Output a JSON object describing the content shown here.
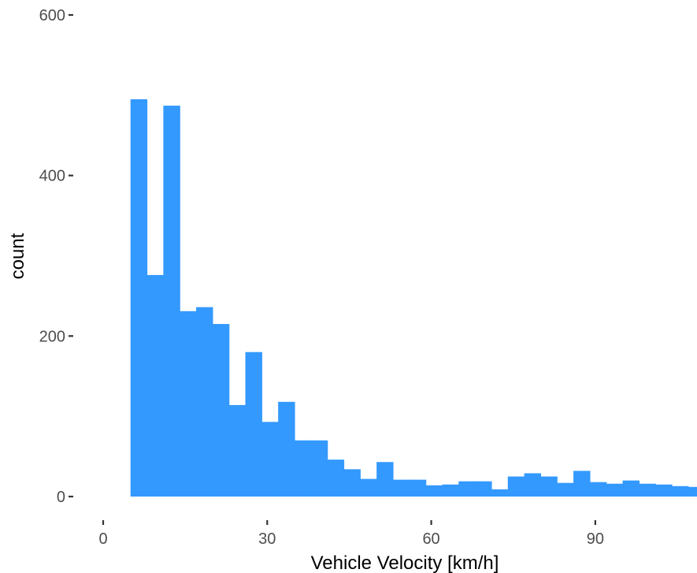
{
  "chart_data": {
    "type": "bar",
    "subtype": "histogram",
    "title": "",
    "xlabel": "Vehicle Velocity [km/h]",
    "ylabel": "count",
    "xlim": [
      0,
      108.6
    ],
    "ylim": [
      0,
      600
    ],
    "x_ticks": [
      0,
      30,
      60,
      90
    ],
    "y_ticks": [
      0,
      200,
      400,
      600
    ],
    "grid": false,
    "bar_color": "#3399ff",
    "bin_width": 3,
    "bins": [
      {
        "x0": 5,
        "count": 495
      },
      {
        "x0": 8,
        "count": 276
      },
      {
        "x0": 11,
        "count": 487
      },
      {
        "x0": 14,
        "count": 231
      },
      {
        "x0": 17,
        "count": 236
      },
      {
        "x0": 20,
        "count": 215
      },
      {
        "x0": 23,
        "count": 114
      },
      {
        "x0": 26,
        "count": 180
      },
      {
        "x0": 29,
        "count": 93
      },
      {
        "x0": 32,
        "count": 118
      },
      {
        "x0": 35,
        "count": 70
      },
      {
        "x0": 38,
        "count": 70
      },
      {
        "x0": 41,
        "count": 46
      },
      {
        "x0": 44,
        "count": 34
      },
      {
        "x0": 47,
        "count": 22
      },
      {
        "x0": 50,
        "count": 43
      },
      {
        "x0": 53,
        "count": 21
      },
      {
        "x0": 56,
        "count": 21
      },
      {
        "x0": 59,
        "count": 14
      },
      {
        "x0": 62,
        "count": 15
      },
      {
        "x0": 65,
        "count": 19
      },
      {
        "x0": 68,
        "count": 19
      },
      {
        "x0": 71,
        "count": 9
      },
      {
        "x0": 74,
        "count": 25
      },
      {
        "x0": 77,
        "count": 29
      },
      {
        "x0": 80,
        "count": 25
      },
      {
        "x0": 83,
        "count": 17
      },
      {
        "x0": 86,
        "count": 32
      },
      {
        "x0": 89,
        "count": 18
      },
      {
        "x0": 92,
        "count": 16
      },
      {
        "x0": 95,
        "count": 20
      },
      {
        "x0": 98,
        "count": 16
      },
      {
        "x0": 101,
        "count": 15
      },
      {
        "x0": 104,
        "count": 13
      },
      {
        "x0": 107,
        "count": 12
      }
    ]
  }
}
